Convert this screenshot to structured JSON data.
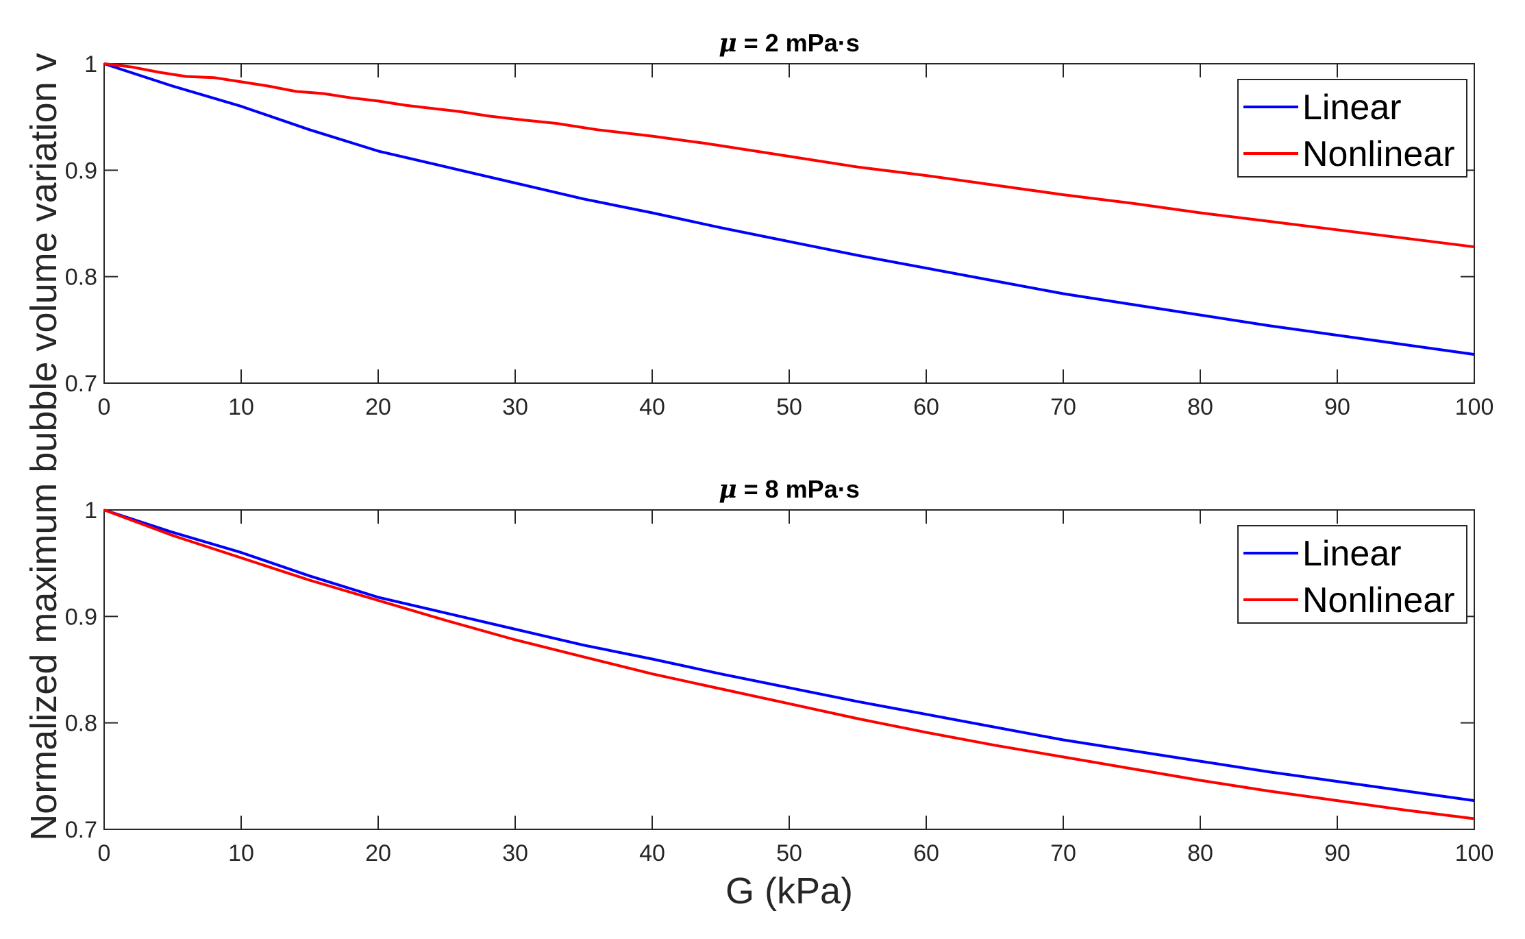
{
  "chart_data": [
    {
      "type": "line",
      "title_symbol": "μ",
      "title_rest": " = 2 mPa·s",
      "xlabel": "G (kPa)",
      "ylabel": "Normalized maximum bubble volume variation v",
      "xlim": [
        0,
        100
      ],
      "ylim": [
        0.7,
        1
      ],
      "xticks": [
        0,
        10,
        20,
        30,
        40,
        50,
        60,
        70,
        80,
        90,
        100
      ],
      "yticks": [
        0.7,
        0.8,
        0.9,
        1
      ],
      "ytick_labels": [
        "0.7",
        "0.8",
        "0.9",
        "1"
      ],
      "legend_position": "top-right",
      "series": [
        {
          "name": "Linear",
          "color": "#0000ff",
          "x": [
            0,
            5,
            10,
            15,
            20,
            25,
            30,
            35,
            40,
            45,
            50,
            55,
            60,
            65,
            70,
            75,
            80,
            85,
            90,
            95,
            100
          ],
          "y": [
            1,
            0.979,
            0.96,
            0.938,
            0.918,
            0.903,
            0.888,
            0.873,
            0.86,
            0.846,
            0.833,
            0.82,
            0.808,
            0.796,
            0.784,
            0.774,
            0.764,
            0.754,
            0.745,
            0.736,
            0.727
          ]
        },
        {
          "name": "Nonlinear",
          "color": "#ff0000",
          "x": [
            0,
            2,
            4,
            6,
            8,
            10,
            12,
            14,
            16,
            18,
            20,
            22,
            26,
            28,
            30,
            33,
            36,
            40,
            44,
            48,
            50,
            55,
            60,
            65,
            70,
            75,
            80,
            85,
            90,
            95,
            100
          ],
          "y": [
            1,
            0.997,
            0.992,
            0.988,
            0.987,
            0.983,
            0.979,
            0.974,
            0.972,
            0.968,
            0.965,
            0.961,
            0.955,
            0.951,
            0.948,
            0.944,
            0.938,
            0.932,
            0.925,
            0.917,
            0.913,
            0.903,
            0.895,
            0.886,
            0.877,
            0.869,
            0.86,
            0.852,
            0.844,
            0.836,
            0.828
          ]
        }
      ]
    },
    {
      "type": "line",
      "title_symbol": "μ",
      "title_rest": " = 8 mPa·s",
      "xlabel": "G (kPa)",
      "ylabel": "Normalized maximum bubble volume variation v",
      "xlim": [
        0,
        100
      ],
      "ylim": [
        0.7,
        1
      ],
      "xticks": [
        0,
        10,
        20,
        30,
        40,
        50,
        60,
        70,
        80,
        90,
        100
      ],
      "yticks": [
        0.7,
        0.8,
        0.9,
        1
      ],
      "ytick_labels": [
        "0.7",
        "0.8",
        "0.9",
        "1"
      ],
      "legend_position": "top-right",
      "series": [
        {
          "name": "Linear",
          "color": "#0000ff",
          "x": [
            0,
            5,
            10,
            15,
            20,
            25,
            30,
            35,
            40,
            45,
            50,
            55,
            60,
            65,
            70,
            75,
            80,
            85,
            90,
            95,
            100
          ],
          "y": [
            1,
            0.979,
            0.96,
            0.938,
            0.918,
            0.903,
            0.888,
            0.873,
            0.86,
            0.846,
            0.833,
            0.82,
            0.808,
            0.796,
            0.784,
            0.774,
            0.764,
            0.754,
            0.745,
            0.736,
            0.727
          ]
        },
        {
          "name": "Nonlinear",
          "color": "#ff0000",
          "x": [
            0,
            5,
            10,
            15,
            20,
            25,
            30,
            35,
            40,
            45,
            50,
            55,
            60,
            65,
            70,
            75,
            80,
            85,
            90,
            95,
            100
          ],
          "y": [
            1,
            0.976,
            0.955,
            0.934,
            0.915,
            0.896,
            0.878,
            0.862,
            0.846,
            0.832,
            0.818,
            0.804,
            0.791,
            0.779,
            0.768,
            0.757,
            0.746,
            0.736,
            0.727,
            0.718,
            0.71
          ]
        }
      ]
    }
  ]
}
